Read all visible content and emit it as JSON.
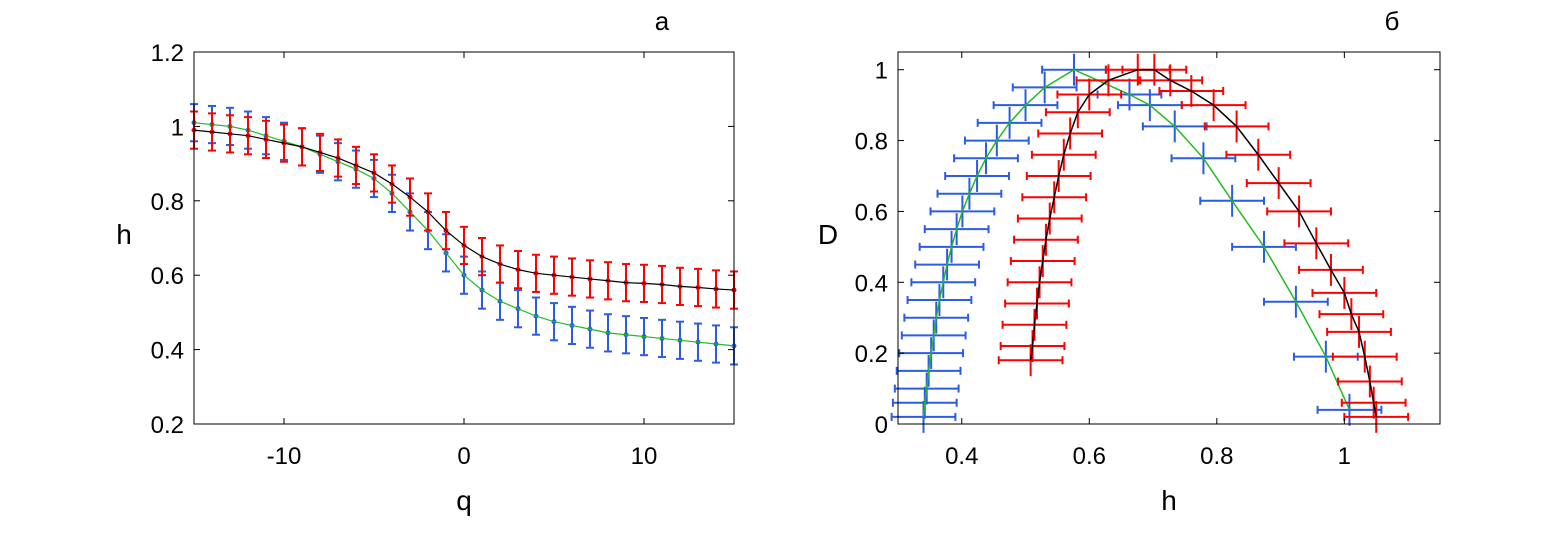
{
  "chart_data": [
    {
      "type": "line",
      "panel_label": "а",
      "xlabel": "q",
      "ylabel": "h",
      "xlim": [
        -15,
        15
      ],
      "ylim": [
        0.2,
        1.2
      ],
      "xticks": [
        "-10",
        "0",
        "10"
      ],
      "xtick_values": [
        -10,
        0,
        10
      ],
      "yticks": [
        "0.2",
        "0.4",
        "0.6",
        "0.8",
        "1",
        "1.2"
      ],
      "ytick_values": [
        0.2,
        0.4,
        0.6,
        0.8,
        1,
        1.2
      ],
      "grid": false,
      "x": [
        -15,
        -14,
        -13,
        -12,
        -11,
        -10,
        -9,
        -8,
        -7,
        -6,
        -5,
        -4,
        -3,
        -2,
        -1,
        0,
        1,
        2,
        3,
        4,
        5,
        6,
        7,
        8,
        9,
        10,
        11,
        12,
        13,
        14,
        15
      ],
      "series": [
        {
          "color": "#2b5ce6",
          "error": 0.05,
          "values": [
            1.01,
            1.005,
            1.0,
            0.99,
            0.975,
            0.96,
            0.945,
            0.925,
            0.905,
            0.885,
            0.86,
            0.82,
            0.77,
            0.72,
            0.66,
            0.6,
            0.56,
            0.53,
            0.51,
            0.49,
            0.475,
            0.465,
            0.455,
            0.445,
            0.44,
            0.435,
            0.43,
            0.425,
            0.42,
            0.415,
            0.41
          ]
        },
        {
          "color": "#ff0000",
          "error": 0.05,
          "values": [
            0.99,
            0.985,
            0.98,
            0.975,
            0.965,
            0.955,
            0.945,
            0.93,
            0.915,
            0.895,
            0.875,
            0.845,
            0.81,
            0.77,
            0.72,
            0.68,
            0.65,
            0.63,
            0.615,
            0.605,
            0.6,
            0.595,
            0.59,
            0.585,
            0.58,
            0.578,
            0.575,
            0.57,
            0.567,
            0.563,
            0.56
          ]
        }
      ]
    },
    {
      "type": "scatter",
      "panel_label": "б",
      "xlabel": "h",
      "ylabel": "D",
      "xlim": [
        0.3,
        1.15
      ],
      "ylim": [
        0,
        1.05
      ],
      "xticks": [
        "0.4",
        "0.6",
        "0.8",
        "1"
      ],
      "xtick_values": [
        0.4,
        0.6,
        0.8,
        1
      ],
      "yticks": [
        "0",
        "0.2",
        "0.4",
        "0.6",
        "0.8",
        "1"
      ],
      "ytick_values": [
        0,
        0.2,
        0.4,
        0.6,
        0.8,
        1
      ],
      "grid": false,
      "series": [
        {
          "color": "#2b5ce6",
          "fit_color": "#22bb22",
          "h_error": 0.05,
          "d_error": 0.045,
          "h": [
            0.34,
            0.342,
            0.345,
            0.348,
            0.352,
            0.356,
            0.36,
            0.365,
            0.371,
            0.377,
            0.384,
            0.392,
            0.401,
            0.412,
            0.424,
            0.438,
            0.455,
            0.475,
            0.5,
            0.53,
            0.576,
            0.663,
            0.695,
            0.734,
            0.779,
            0.824,
            0.874,
            0.924,
            0.971,
            1.008
          ],
          "D": [
            0.02,
            0.06,
            0.1,
            0.15,
            0.2,
            0.25,
            0.3,
            0.35,
            0.4,
            0.45,
            0.5,
            0.55,
            0.6,
            0.65,
            0.7,
            0.75,
            0.8,
            0.85,
            0.9,
            0.95,
            1.0,
            0.93,
            0.9,
            0.84,
            0.75,
            0.63,
            0.5,
            0.345,
            0.19,
            0.04
          ]
        },
        {
          "color": "#ff0000",
          "fit_color": "#000000",
          "h_error": 0.05,
          "d_error": 0.045,
          "h": [
            0.508,
            0.511,
            0.514,
            0.518,
            0.522,
            0.527,
            0.532,
            0.538,
            0.545,
            0.552,
            0.56,
            0.57,
            0.582,
            0.6,
            0.63,
            0.676,
            0.702,
            0.727,
            0.76,
            0.795,
            0.831,
            0.865,
            0.897,
            0.929,
            0.956,
            0.979,
            1.0,
            1.011,
            1.023,
            1.032,
            1.04,
            1.046,
            1.05
          ],
          "D": [
            0.18,
            0.22,
            0.28,
            0.34,
            0.4,
            0.46,
            0.52,
            0.58,
            0.64,
            0.7,
            0.76,
            0.82,
            0.88,
            0.93,
            0.97,
            1.0,
            1.0,
            0.97,
            0.94,
            0.9,
            0.84,
            0.76,
            0.68,
            0.6,
            0.51,
            0.435,
            0.37,
            0.31,
            0.26,
            0.19,
            0.12,
            0.06,
            0.02
          ]
        }
      ]
    }
  ]
}
